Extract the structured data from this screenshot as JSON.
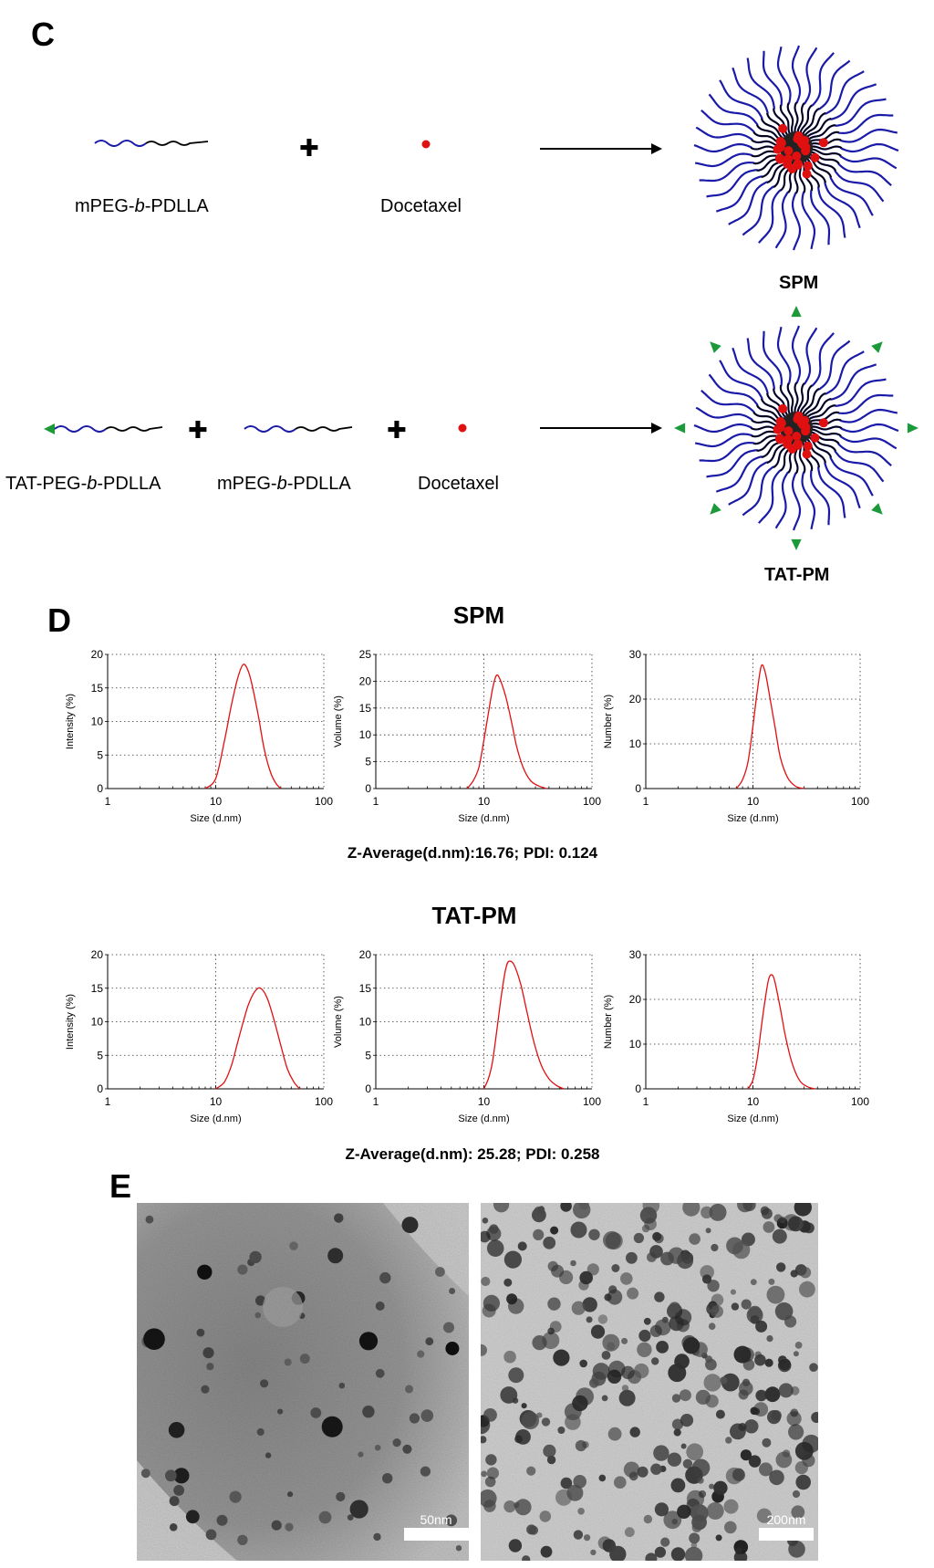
{
  "panel_c": {
    "letter": "C",
    "row1": {
      "polymer_prefix": "mPEG-",
      "polymer_italic": "b",
      "polymer_suffix": "-PDLLA",
      "drug": "Docetaxel",
      "product": "SPM"
    },
    "row2": {
      "tat_prefix": "TAT-PEG-",
      "tat_italic": "b",
      "tat_suffix": "-PDLLA",
      "polymer_prefix": "mPEG-",
      "polymer_italic": "b",
      "polymer_suffix": "-PDLLA",
      "drug": "Docetaxel",
      "product": "TAT-PM"
    },
    "colors": {
      "peg": "#1a1aa8",
      "pdlla": "#000000",
      "drug": "#e01010",
      "tat": "#1c9a3a"
    }
  },
  "panel_d": {
    "letter": "D",
    "groups": [
      {
        "title": "SPM",
        "stat": "Z-Average(d.nm):16.76; PDI: 0.124"
      },
      {
        "title": "TAT-PM",
        "stat": "Z-Average(d.nm): 25.28; PDI: 0.258"
      }
    ]
  },
  "panel_e": {
    "letter": "E",
    "images": [
      {
        "scale_label": "50nm"
      },
      {
        "scale_label": "200nm"
      }
    ]
  },
  "chart_data": [
    {
      "type": "line",
      "group": "SPM",
      "ylabel": "Intensity (%)",
      "xlabel": "Size (d.nm)",
      "xscale": "log",
      "xlim": [
        1,
        100
      ],
      "ylim": [
        0,
        20
      ],
      "yticks": [
        0,
        5,
        10,
        15,
        20
      ],
      "xticks": [
        1,
        10,
        100
      ],
      "x": [
        8,
        10,
        12,
        14,
        16,
        18,
        20,
        22,
        25,
        28,
        32,
        36,
        40
      ],
      "y": [
        0,
        1.5,
        7,
        12.5,
        16.5,
        18.5,
        17.5,
        15,
        10.5,
        6,
        2.5,
        0.8,
        0
      ]
    },
    {
      "type": "line",
      "group": "SPM",
      "ylabel": "Volume (%)",
      "xlabel": "Size (d.nm)",
      "xscale": "log",
      "xlim": [
        1,
        100
      ],
      "ylim": [
        0,
        25
      ],
      "yticks": [
        0,
        5,
        10,
        15,
        20,
        25
      ],
      "xticks": [
        1,
        10,
        100
      ],
      "x": [
        7,
        8,
        9,
        10,
        11,
        12,
        13,
        14,
        16,
        18,
        20,
        23,
        27,
        32,
        38
      ],
      "y": [
        0,
        1.5,
        4,
        9,
        14,
        18.5,
        21,
        20.5,
        17,
        12.5,
        8,
        4,
        1.5,
        0.5,
        0
      ]
    },
    {
      "type": "line",
      "group": "SPM",
      "ylabel": "Number (%)",
      "xlabel": "Size (d.nm)",
      "xscale": "log",
      "xlim": [
        1,
        100
      ],
      "ylim": [
        0,
        30
      ],
      "yticks": [
        0,
        10,
        20,
        30
      ],
      "xticks": [
        1,
        10,
        100
      ],
      "x": [
        7,
        8,
        9,
        10,
        11,
        12,
        13,
        14,
        16,
        18,
        21,
        25,
        30
      ],
      "y": [
        0,
        2,
        6,
        14,
        22,
        27.5,
        26,
        22,
        14,
        7,
        2.5,
        0.5,
        0
      ]
    },
    {
      "type": "line",
      "group": "TAT-PM",
      "ylabel": "Intensity (%)",
      "xlabel": "Size (d.nm)",
      "xscale": "log",
      "xlim": [
        1,
        100
      ],
      "ylim": [
        0,
        20
      ],
      "yticks": [
        0,
        5,
        10,
        15,
        20
      ],
      "xticks": [
        1,
        10,
        100
      ],
      "x": [
        10,
        12,
        14,
        16,
        18,
        20,
        23,
        26,
        30,
        35,
        40,
        46,
        53,
        60
      ],
      "y": [
        0,
        1,
        3.5,
        7,
        10,
        12.5,
        14.5,
        15,
        13.5,
        10,
        6.5,
        3,
        1,
        0
      ]
    },
    {
      "type": "line",
      "group": "TAT-PM",
      "ylabel": "Volume (%)",
      "xlabel": "Size (d.nm)",
      "xscale": "log",
      "xlim": [
        1,
        100
      ],
      "ylim": [
        0,
        20
      ],
      "yticks": [
        0,
        5,
        10,
        15,
        20
      ],
      "xticks": [
        1,
        10,
        100
      ],
      "x": [
        10,
        11,
        12,
        13,
        14,
        15,
        16,
        17,
        19,
        22,
        25,
        29,
        34,
        40,
        47,
        55
      ],
      "y": [
        0,
        1.5,
        4,
        8,
        12,
        15.5,
        18,
        19,
        18.5,
        15.5,
        11.5,
        7,
        3.5,
        1.5,
        0.5,
        0
      ]
    },
    {
      "type": "line",
      "group": "TAT-PM",
      "ylabel": "Number (%)",
      "xlabel": "Size (d.nm)",
      "xscale": "log",
      "xlim": [
        1,
        100
      ],
      "ylim": [
        0,
        30
      ],
      "yticks": [
        0,
        10,
        20,
        30
      ],
      "xticks": [
        1,
        10,
        100
      ],
      "x": [
        9,
        10,
        11,
        12,
        13,
        14,
        15,
        16,
        18,
        20,
        23,
        27,
        32,
        38
      ],
      "y": [
        0,
        2,
        7,
        14,
        20,
        24.5,
        25.5,
        24,
        18,
        12,
        6,
        2,
        0.5,
        0
      ]
    }
  ]
}
